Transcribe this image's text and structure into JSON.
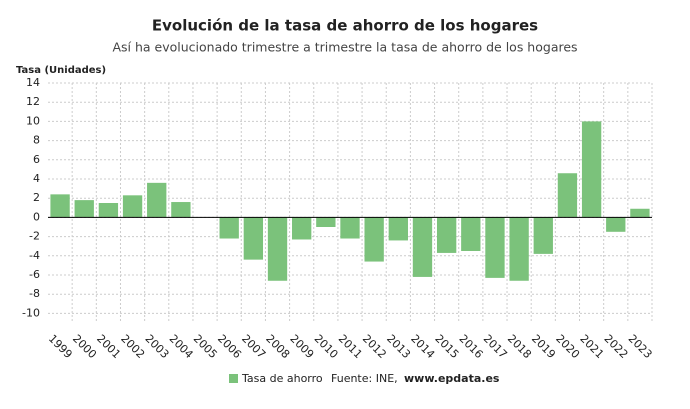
{
  "chart_data": {
    "type": "bar",
    "title": "Evolución de la tasa de ahorro de los hogares",
    "subtitle": "Así ha evolucionado trimestre a trimestre la tasa de ahorro de los hogares",
    "y_label": "Tasa (Unidades)",
    "categories": [
      "1999",
      "2000",
      "2001",
      "2002",
      "2003",
      "2004",
      "2005",
      "2006",
      "2007",
      "2008",
      "2009",
      "2010",
      "2011",
      "2012",
      "2013",
      "2014",
      "2015",
      "2016",
      "2017",
      "2018",
      "2019",
      "2020",
      "2021",
      "2022",
      "2023"
    ],
    "series": [
      {
        "name": "Tasa de ahorro",
        "color": "#7bc27b",
        "values": [
          2.4,
          1.8,
          1.5,
          2.3,
          3.6,
          1.6,
          0,
          -2.2,
          -4.4,
          -6.6,
          -2.3,
          -1.0,
          -2.2,
          -4.6,
          -2.4,
          -6.2,
          -3.7,
          -3.5,
          -6.3,
          -6.6,
          -3.8,
          4.6,
          10.0,
          -1.5,
          0.9
        ]
      }
    ],
    "ylim": [
      -11,
      14
    ],
    "yticks": [
      -10,
      -8,
      -6,
      -4,
      -2,
      0,
      2,
      4,
      6,
      8,
      10,
      12,
      14
    ],
    "grid": true,
    "source_label": "Fuente: INE,",
    "source_link": "www.epdata.es"
  }
}
